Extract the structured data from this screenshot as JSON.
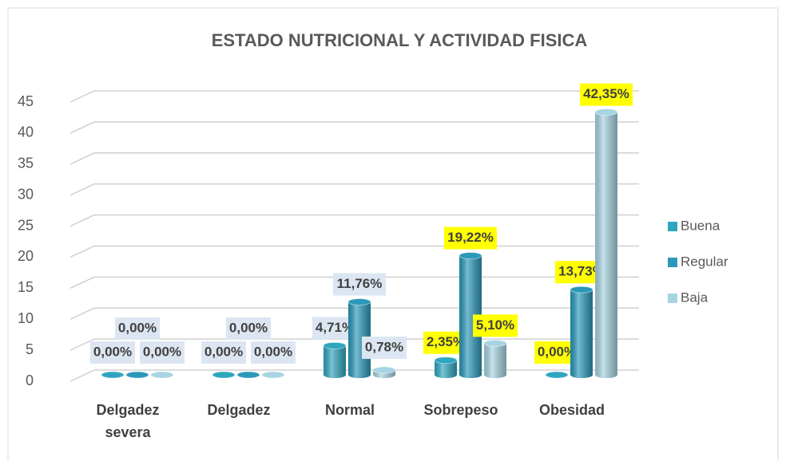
{
  "chart_data": {
    "type": "bar3d",
    "title": "ESTADO NUTRICIONAL  Y ACTIVIDAD FISICA",
    "categories": [
      "Delgadez severa",
      "Delgadez",
      "Normal",
      "Sobrepeso",
      "Obesidad"
    ],
    "series": [
      {
        "name": "Buena",
        "color": "#2fa6bf",
        "values": [
          0,
          0,
          4.71,
          2.35,
          0
        ],
        "value_labels": [
          "0,00%",
          "0,00%",
          "4,71%",
          "2,35%",
          "0,00%"
        ]
      },
      {
        "name": "Regular",
        "color": "#2b98b9",
        "values": [
          0,
          0,
          11.76,
          19.22,
          13.73
        ],
        "value_labels": [
          "0,00%",
          "0,00%",
          "11,76%",
          "19,22%",
          "13,73%"
        ]
      },
      {
        "name": "Baja",
        "color": "#a7d4e2",
        "values": [
          0,
          0,
          0.78,
          5.1,
          42.35
        ],
        "value_labels": [
          "0,00%",
          "0,00%",
          "0,78%",
          "5,10%",
          "42,35%"
        ]
      }
    ],
    "label_backgrounds": [
      "#dce6f2",
      "#dce6f2",
      "#dce6f2",
      "#ffff00",
      "#ffff00"
    ],
    "ylim": [
      0,
      45
    ],
    "yticks": [
      0,
      5,
      10,
      15,
      20,
      25,
      30,
      35,
      40,
      45
    ],
    "grid": true,
    "legend": "right"
  }
}
